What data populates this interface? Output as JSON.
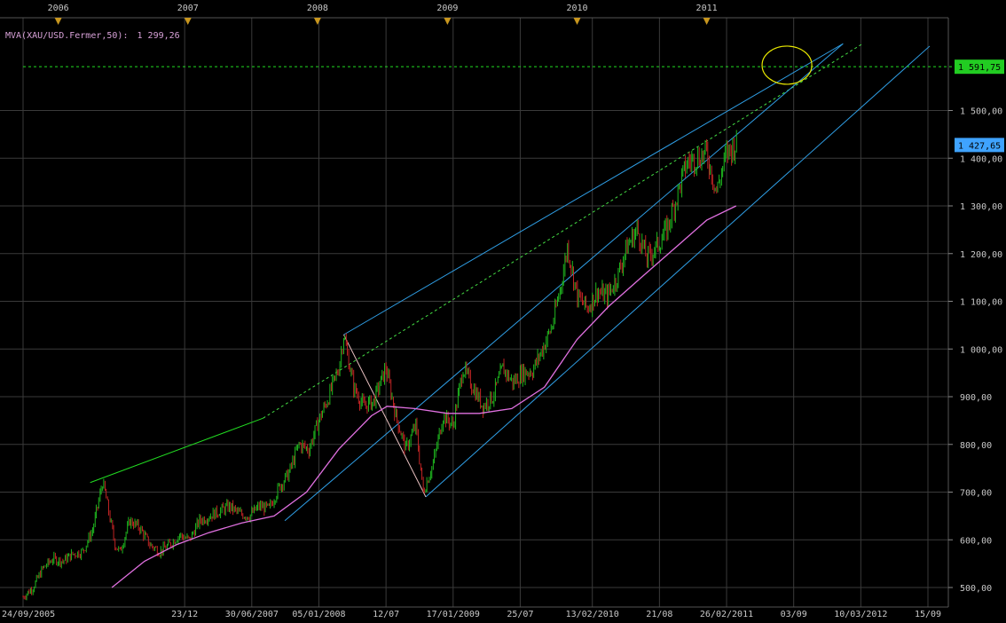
{
  "indicator": {
    "label": "MVA(XAU/USD.Fermer,50):",
    "value": "1 299,26"
  },
  "chart_data": {
    "type": "candlestick",
    "title": "",
    "xlabel": "",
    "ylabel": "",
    "ylim": [
      490,
      1640
    ],
    "grid": true,
    "y_ticks": [
      {
        "value": 500,
        "label": "500,00"
      },
      {
        "value": 600,
        "label": "600,00"
      },
      {
        "value": 700,
        "label": "700,00"
      },
      {
        "value": 800,
        "label": "800,00"
      },
      {
        "value": 900,
        "label": "900,00"
      },
      {
        "value": 1000,
        "label": "1 000,00"
      },
      {
        "value": 1100,
        "label": "1 100,00"
      },
      {
        "value": 1200,
        "label": "1 200,00"
      },
      {
        "value": 1300,
        "label": "1 300,00"
      },
      {
        "value": 1400,
        "label": "1 400,00"
      },
      {
        "value": 1500,
        "label": "1 500,00"
      }
    ],
    "x_ticks": [
      {
        "date": "2005-09-24",
        "label": "24/09/2005"
      },
      {
        "date": "2006-12-23",
        "label": "23/12"
      },
      {
        "date": "2007-06-30",
        "label": "30/06/2007"
      },
      {
        "date": "2008-01-05",
        "label": "05/01/2008"
      },
      {
        "date": "2008-07-12",
        "label": "12/07"
      },
      {
        "date": "2009-01-17",
        "label": "17/01/2009"
      },
      {
        "date": "2009-07-25",
        "label": "25/07"
      },
      {
        "date": "2010-02-13",
        "label": "13/02/2010"
      },
      {
        "date": "2010-08-21",
        "label": "21/08"
      },
      {
        "date": "2011-02-26",
        "label": "26/02/2011"
      },
      {
        "date": "2011-09-03",
        "label": "03/09"
      },
      {
        "date": "2012-03-10",
        "label": "10/03/2012"
      },
      {
        "date": "2012-09-15",
        "label": "15/09"
      }
    ],
    "year_markers": [
      {
        "date": "2006-01-01",
        "label": "2006"
      },
      {
        "date": "2007-01-01",
        "label": "2007"
      },
      {
        "date": "2008-01-01",
        "label": "2008"
      },
      {
        "date": "2009-01-01",
        "label": "2009"
      },
      {
        "date": "2010-01-01",
        "label": "2010"
      },
      {
        "date": "2011-01-01",
        "label": "2011"
      }
    ],
    "price_badges": [
      {
        "value": 1591.75,
        "label": "1 591,75",
        "color": "#22cc22"
      },
      {
        "value": 1427.65,
        "label": "1 427,65",
        "color": "#3fa3ff"
      }
    ],
    "close_series": [
      [
        "2005-09-24",
        480
      ],
      [
        "2005-10-22",
        500
      ],
      [
        "2005-11-19",
        540
      ],
      [
        "2005-12-17",
        560
      ],
      [
        "2006-01-14",
        555
      ],
      [
        "2006-02-11",
        570
      ],
      [
        "2006-03-11",
        575
      ],
      [
        "2006-04-08",
        620
      ],
      [
        "2006-05-06",
        720
      ],
      [
        "2006-05-13",
        700
      ],
      [
        "2006-06-10",
        590
      ],
      [
        "2006-06-24",
        575
      ],
      [
        "2006-07-22",
        640
      ],
      [
        "2006-08-19",
        625
      ],
      [
        "2006-09-16",
        590
      ],
      [
        "2006-10-14",
        575
      ],
      [
        "2006-11-11",
        590
      ],
      [
        "2006-12-09",
        610
      ],
      [
        "2007-01-06",
        600
      ],
      [
        "2007-02-03",
        640
      ],
      [
        "2007-03-03",
        650
      ],
      [
        "2007-03-31",
        660
      ],
      [
        "2007-04-28",
        670
      ],
      [
        "2007-05-26",
        655
      ],
      [
        "2007-06-23",
        650
      ],
      [
        "2007-07-21",
        670
      ],
      [
        "2007-08-18",
        665
      ],
      [
        "2007-09-15",
        710
      ],
      [
        "2007-10-13",
        740
      ],
      [
        "2007-11-10",
        800
      ],
      [
        "2007-12-08",
        790
      ],
      [
        "2008-01-05",
        850
      ],
      [
        "2008-02-02",
        900
      ],
      [
        "2008-03-01",
        960
      ],
      [
        "2008-03-15",
        1030
      ],
      [
        "2008-04-12",
        920
      ],
      [
        "2008-05-10",
        880
      ],
      [
        "2008-06-07",
        890
      ],
      [
        "2008-07-12",
        960
      ],
      [
        "2008-08-09",
        860
      ],
      [
        "2008-09-06",
        790
      ],
      [
        "2008-10-04",
        840
      ],
      [
        "2008-10-25",
        700
      ],
      [
        "2008-11-22",
        760
      ],
      [
        "2008-12-20",
        860
      ],
      [
        "2009-01-17",
        840
      ],
      [
        "2009-02-14",
        960
      ],
      [
        "2009-03-14",
        920
      ],
      [
        "2009-04-11",
        880
      ],
      [
        "2009-05-09",
        900
      ],
      [
        "2009-06-06",
        960
      ],
      [
        "2009-07-04",
        930
      ],
      [
        "2009-08-01",
        950
      ],
      [
        "2009-08-29",
        955
      ],
      [
        "2009-09-26",
        1000
      ],
      [
        "2009-10-24",
        1050
      ],
      [
        "2009-11-21",
        1150
      ],
      [
        "2009-12-05",
        1215
      ],
      [
        "2010-01-02",
        1110
      ],
      [
        "2010-01-30",
        1085
      ],
      [
        "2010-02-27",
        1120
      ],
      [
        "2010-03-27",
        1110
      ],
      [
        "2010-04-24",
        1150
      ],
      [
        "2010-05-22",
        1215
      ],
      [
        "2010-06-19",
        1250
      ],
      [
        "2010-07-17",
        1190
      ],
      [
        "2010-08-14",
        1215
      ],
      [
        "2010-09-11",
        1250
      ],
      [
        "2010-10-09",
        1320
      ],
      [
        "2010-11-06",
        1390
      ],
      [
        "2010-12-04",
        1400
      ],
      [
        "2011-01-01",
        1410
      ],
      [
        "2011-01-29",
        1330
      ],
      [
        "2011-02-26",
        1410
      ],
      [
        "2011-03-26",
        1430
      ]
    ],
    "moving_average_50": [
      [
        "2006-06-01",
        500
      ],
      [
        "2006-09-01",
        555
      ],
      [
        "2006-12-01",
        590
      ],
      [
        "2007-03-01",
        615
      ],
      [
        "2007-06-01",
        635
      ],
      [
        "2007-09-01",
        650
      ],
      [
        "2007-12-01",
        700
      ],
      [
        "2008-03-01",
        790
      ],
      [
        "2008-06-01",
        860
      ],
      [
        "2008-07-15",
        880
      ],
      [
        "2008-10-01",
        875
      ],
      [
        "2009-01-01",
        865
      ],
      [
        "2009-04-01",
        865
      ],
      [
        "2009-07-01",
        875
      ],
      [
        "2009-10-01",
        920
      ],
      [
        "2010-01-01",
        1020
      ],
      [
        "2010-04-01",
        1090
      ],
      [
        "2010-07-01",
        1150
      ],
      [
        "2010-10-01",
        1210
      ],
      [
        "2011-01-01",
        1270
      ],
      [
        "2011-03-25",
        1300
      ]
    ],
    "trend_lines": [
      {
        "name": "green-solid",
        "style": "solid",
        "color": "#22dd22",
        "points": [
          [
            "2006-04-01",
            720
          ],
          [
            "2007-08-01",
            855
          ]
        ]
      },
      {
        "name": "green-dashed",
        "style": "dashed",
        "color": "#44dd44",
        "points": [
          [
            "2007-08-01",
            855
          ],
          [
            "2012-03-15",
            1640
          ]
        ]
      },
      {
        "name": "channel-upper",
        "style": "solid",
        "color": "#2f9fe6",
        "points": [
          [
            "2008-03-15",
            1030
          ],
          [
            "2012-01-20",
            1640
          ]
        ]
      },
      {
        "name": "channel-middle",
        "style": "solid",
        "color": "#2f9fe6",
        "points": [
          [
            "2007-10-01",
            640
          ],
          [
            "2012-01-20",
            1640
          ]
        ]
      },
      {
        "name": "channel-lower",
        "style": "solid",
        "color": "#2f9fe6",
        "points": [
          [
            "2008-11-01",
            690
          ],
          [
            "2012-09-20",
            1635
          ]
        ]
      },
      {
        "name": "drop-line",
        "style": "solid",
        "color": "#e8c0c0",
        "points": [
          [
            "2008-03-15",
            1030
          ],
          [
            "2008-11-01",
            690
          ]
        ]
      },
      {
        "name": "horizontal-level",
        "style": "dashed",
        "color": "#22dd22",
        "points": [
          [
            "2005-09-24",
            1591.75
          ],
          [
            "2012-11-30",
            1591.75
          ]
        ]
      }
    ],
    "annotations": [
      {
        "type": "ellipse",
        "color": "#e8e800",
        "center": [
          "2011-08-15",
          1595
        ],
        "rx_days": 70,
        "ry_value": 40
      }
    ]
  }
}
